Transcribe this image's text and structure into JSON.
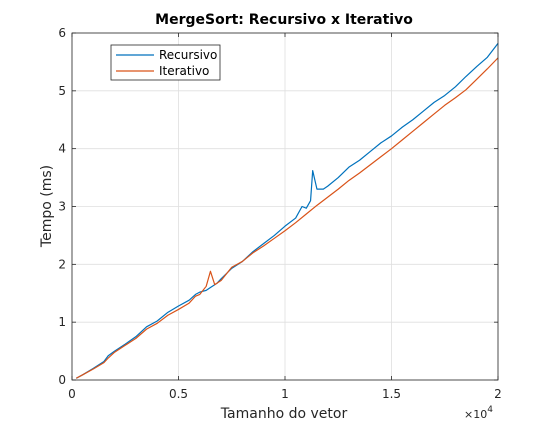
{
  "chart_data": {
    "type": "line",
    "title": "MergeSort: Recursivo x Iterativo",
    "xlabel": "Tamanho do vetor",
    "ylabel": "Tempo (ms)",
    "xlim": [
      0,
      20000
    ],
    "ylim": [
      0,
      6
    ],
    "xticks": [
      0,
      5000,
      10000,
      15000,
      20000
    ],
    "xtick_labels": [
      "0",
      "0.5",
      "1",
      "1.5",
      "2"
    ],
    "x_exponent_label": "×10",
    "x_exponent_power": "4",
    "yticks": [
      0,
      1,
      2,
      3,
      4,
      5,
      6
    ],
    "ytick_labels": [
      "0",
      "1",
      "2",
      "3",
      "4",
      "5",
      "6"
    ],
    "grid": true,
    "legend_position": "top-left",
    "series": [
      {
        "name": "Recursivo",
        "color": "#0072bd",
        "x": [
          200,
          500,
          1000,
          1500,
          1700,
          2000,
          2500,
          3000,
          3500,
          4000,
          4500,
          5000,
          5500,
          5800,
          6000,
          6300,
          6500,
          6800,
          7000,
          7500,
          8000,
          8500,
          9000,
          9500,
          10000,
          10500,
          10800,
          11000,
          11200,
          11300,
          11500,
          11800,
          12000,
          12500,
          13000,
          13500,
          14000,
          14500,
          15000,
          15500,
          16000,
          16500,
          17000,
          17500,
          18000,
          18500,
          19000,
          19500,
          20000
        ],
        "y": [
          0.03,
          0.09,
          0.2,
          0.32,
          0.42,
          0.5,
          0.62,
          0.75,
          0.92,
          1.02,
          1.17,
          1.28,
          1.38,
          1.48,
          1.52,
          1.55,
          1.6,
          1.67,
          1.75,
          1.93,
          2.05,
          2.22,
          2.36,
          2.5,
          2.66,
          2.8,
          3.0,
          2.97,
          3.1,
          3.62,
          3.3,
          3.3,
          3.35,
          3.5,
          3.68,
          3.8,
          3.95,
          4.1,
          4.22,
          4.37,
          4.5,
          4.65,
          4.8,
          4.92,
          5.07,
          5.25,
          5.42,
          5.58,
          5.82
        ]
      },
      {
        "name": "Iterativo",
        "color": "#d95319",
        "x": [
          200,
          500,
          1000,
          1500,
          1700,
          2000,
          2500,
          3000,
          3500,
          4000,
          4500,
          5000,
          5500,
          5800,
          6000,
          6300,
          6500,
          6700,
          7000,
          7500,
          8000,
          8500,
          9000,
          9500,
          10000,
          10500,
          11000,
          11500,
          12000,
          12500,
          13000,
          13500,
          14000,
          14500,
          15000,
          15500,
          16000,
          16500,
          17000,
          17500,
          18000,
          18500,
          19000,
          19500,
          20000
        ],
        "y": [
          0.03,
          0.09,
          0.19,
          0.3,
          0.38,
          0.48,
          0.6,
          0.72,
          0.88,
          0.98,
          1.12,
          1.22,
          1.33,
          1.45,
          1.48,
          1.62,
          1.88,
          1.65,
          1.72,
          1.95,
          2.05,
          2.2,
          2.32,
          2.45,
          2.58,
          2.72,
          2.87,
          3.02,
          3.16,
          3.3,
          3.45,
          3.58,
          3.72,
          3.86,
          4.0,
          4.15,
          4.3,
          4.45,
          4.6,
          4.75,
          4.88,
          5.02,
          5.2,
          5.38,
          5.57
        ]
      }
    ]
  }
}
